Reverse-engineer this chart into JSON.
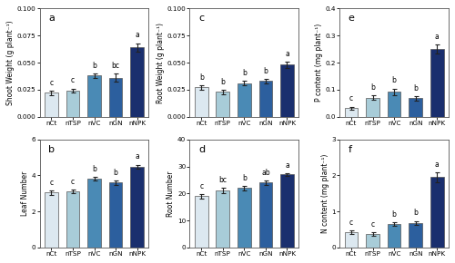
{
  "categories": [
    "nCt",
    "nTSP",
    "nVC",
    "nGN",
    "nNPK"
  ],
  "colors": [
    "#dce8f0",
    "#a8ccd8",
    "#4a8ab5",
    "#2c5f9e",
    "#1a2f6e"
  ],
  "panels": [
    {
      "label": "a",
      "ylabel": "Shoot Weight (g plant⁻¹)",
      "values": [
        0.022,
        0.024,
        0.038,
        0.036,
        0.064
      ],
      "errors": [
        0.002,
        0.002,
        0.002,
        0.004,
        0.004
      ],
      "letters": [
        "c",
        "c",
        "b",
        "bc",
        "a"
      ],
      "ylim": [
        0,
        0.1
      ],
      "yticks": [
        0.0,
        0.025,
        0.05,
        0.075,
        0.1
      ]
    },
    {
      "label": "c",
      "ylabel": "Root Weight (g plant⁻¹)",
      "values": [
        0.027,
        0.023,
        0.031,
        0.033,
        0.048
      ],
      "errors": [
        0.002,
        0.002,
        0.002,
        0.002,
        0.003
      ],
      "letters": [
        "b",
        "b",
        "b",
        "b",
        "a"
      ],
      "ylim": [
        0,
        0.1
      ],
      "yticks": [
        0.0,
        0.025,
        0.05,
        0.075,
        0.1
      ]
    },
    {
      "label": "e",
      "ylabel": "P content (mg plant⁻¹)",
      "values": [
        0.032,
        0.07,
        0.092,
        0.068,
        0.25
      ],
      "errors": [
        0.005,
        0.008,
        0.012,
        0.008,
        0.018
      ],
      "letters": [
        "c",
        "b",
        "b",
        "b",
        "a"
      ],
      "ylim": [
        0,
        0.4
      ],
      "yticks": [
        0.0,
        0.1,
        0.2,
        0.3,
        0.4
      ]
    },
    {
      "label": "b",
      "ylabel": "Leaf Number",
      "values": [
        3.05,
        3.1,
        3.8,
        3.6,
        4.5
      ],
      "errors": [
        0.12,
        0.1,
        0.1,
        0.12,
        0.1
      ],
      "letters": [
        "c",
        "c",
        "b",
        "b",
        "a"
      ],
      "ylim": [
        0,
        6
      ],
      "yticks": [
        0,
        2,
        4,
        6
      ]
    },
    {
      "label": "d",
      "ylabel": "Root Number",
      "values": [
        19,
        21,
        22,
        24,
        27
      ],
      "errors": [
        0.8,
        1.0,
        0.8,
        0.8,
        0.6
      ],
      "letters": [
        "c",
        "bc",
        "b",
        "ab",
        "a"
      ],
      "ylim": [
        0,
        40
      ],
      "yticks": [
        0,
        10,
        20,
        30,
        40
      ]
    },
    {
      "label": "f",
      "ylabel": "N content (mg plant⁻¹)",
      "values": [
        0.42,
        0.38,
        0.65,
        0.68,
        1.95
      ],
      "errors": [
        0.05,
        0.05,
        0.06,
        0.06,
        0.14
      ],
      "letters": [
        "c",
        "c",
        "b",
        "b",
        "a"
      ],
      "ylim": [
        0,
        3
      ],
      "yticks": [
        0,
        1,
        2,
        3
      ]
    }
  ],
  "bar_width": 0.62,
  "edgecolor": "#555555",
  "background_color": "white",
  "axes_facecolor": "white"
}
